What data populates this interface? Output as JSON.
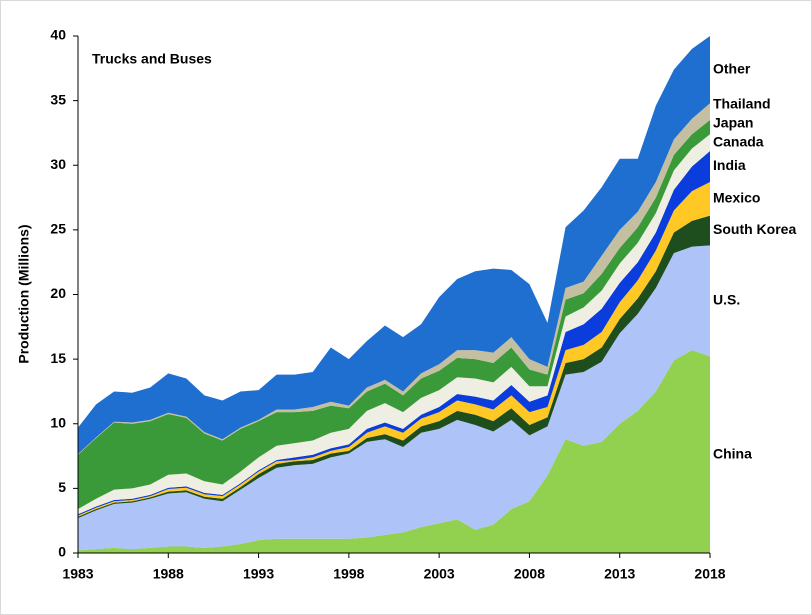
{
  "chart_data": {
    "type": "stacked_area",
    "annotation": "Trucks and Buses",
    "ylabel": "Production (Millions)",
    "x": [
      1983,
      1984,
      1985,
      1986,
      1987,
      1988,
      1989,
      1990,
      1991,
      1992,
      1993,
      1994,
      1995,
      1996,
      1997,
      1998,
      1999,
      2000,
      2001,
      2002,
      2003,
      2004,
      2005,
      2006,
      2007,
      2008,
      2009,
      2010,
      2011,
      2012,
      2013,
      2014,
      2015,
      2016,
      2017,
      2018
    ],
    "xlim": [
      1983,
      2018
    ],
    "xticks": [
      1983,
      1988,
      1993,
      1998,
      2003,
      2008,
      2013,
      2018
    ],
    "ylim": [
      0,
      40
    ],
    "yticks": [
      0,
      5,
      10,
      15,
      20,
      25,
      30,
      35,
      40
    ],
    "series": [
      {
        "name": "China",
        "color": "#92d050",
        "values": [
          0.2,
          0.3,
          0.4,
          0.3,
          0.4,
          0.5,
          0.5,
          0.4,
          0.5,
          0.7,
          1.0,
          1.1,
          1.1,
          1.1,
          1.1,
          1.1,
          1.2,
          1.4,
          1.6,
          2.0,
          2.3,
          2.6,
          1.8,
          2.2,
          3.4,
          4.0,
          6.0,
          8.8,
          8.3,
          8.6,
          10.0,
          11.0,
          12.5,
          14.9,
          15.7,
          15.2
        ]
      },
      {
        "name": "U.S.",
        "color": "#aec3f7",
        "values": [
          2.5,
          3.0,
          3.4,
          3.6,
          3.8,
          4.1,
          4.2,
          3.8,
          3.5,
          4.2,
          4.8,
          5.5,
          5.7,
          5.8,
          6.3,
          6.6,
          7.4,
          7.4,
          6.6,
          7.3,
          7.3,
          7.7,
          8.1,
          7.2,
          6.9,
          5.1,
          3.8,
          5.0,
          5.7,
          6.2,
          7.0,
          7.5,
          8.0,
          8.3,
          8.0,
          8.6
        ]
      },
      {
        "name": "South Korea",
        "color": "#1e4d1e",
        "values": [
          0.1,
          0.1,
          0.1,
          0.1,
          0.1,
          0.15,
          0.15,
          0.15,
          0.2,
          0.2,
          0.3,
          0.3,
          0.3,
          0.3,
          0.3,
          0.2,
          0.3,
          0.4,
          0.5,
          0.5,
          0.6,
          0.7,
          0.8,
          0.8,
          0.9,
          0.8,
          0.7,
          0.9,
          1.0,
          1.1,
          1.1,
          1.2,
          1.3,
          1.6,
          2.0,
          2.3
        ]
      },
      {
        "name": "Mexico",
        "color": "#ffc824",
        "values": [
          0.1,
          0.1,
          0.1,
          0.1,
          0.1,
          0.2,
          0.2,
          0.2,
          0.2,
          0.2,
          0.2,
          0.2,
          0.1,
          0.2,
          0.2,
          0.3,
          0.4,
          0.6,
          0.6,
          0.6,
          0.7,
          0.8,
          0.8,
          0.9,
          1.0,
          1.0,
          0.8,
          1.0,
          1.1,
          1.2,
          1.3,
          1.4,
          1.6,
          1.7,
          2.3,
          2.6
        ]
      },
      {
        "name": "India",
        "color": "#0a3ddb",
        "values": [
          0.1,
          0.1,
          0.1,
          0.1,
          0.1,
          0.1,
          0.1,
          0.1,
          0.1,
          0.1,
          0.1,
          0.1,
          0.2,
          0.2,
          0.2,
          0.2,
          0.3,
          0.3,
          0.3,
          0.3,
          0.4,
          0.5,
          0.6,
          0.7,
          0.8,
          0.8,
          0.9,
          1.4,
          1.6,
          1.8,
          1.5,
          1.4,
          1.4,
          1.6,
          1.9,
          2.4
        ]
      },
      {
        "name": "Canada",
        "color": "#eeeee2",
        "values": [
          0.4,
          0.6,
          0.8,
          0.8,
          0.8,
          1.0,
          1.0,
          0.9,
          0.8,
          0.9,
          1.0,
          1.1,
          1.1,
          1.1,
          1.2,
          1.2,
          1.4,
          1.5,
          1.3,
          1.3,
          1.3,
          1.3,
          1.4,
          1.4,
          1.4,
          1.2,
          0.7,
          1.2,
          1.3,
          1.4,
          1.5,
          1.5,
          1.5,
          1.5,
          1.4,
          1.3
        ]
      },
      {
        "name": "Japan",
        "color": "#3a9a3a",
        "values": [
          4.2,
          4.7,
          5.2,
          5.0,
          4.9,
          4.7,
          4.3,
          3.7,
          3.4,
          3.3,
          2.8,
          2.6,
          2.4,
          2.3,
          2.1,
          1.6,
          1.5,
          1.5,
          1.3,
          1.5,
          1.5,
          1.5,
          1.5,
          1.5,
          1.5,
          1.3,
          0.9,
          1.3,
          1.1,
          1.3,
          1.2,
          1.2,
          1.2,
          1.2,
          1.1,
          1.1
        ]
      },
      {
        "name": "Thailand",
        "color": "#c4bfa0",
        "values": [
          0.05,
          0.05,
          0.05,
          0.1,
          0.1,
          0.1,
          0.1,
          0.1,
          0.1,
          0.1,
          0.1,
          0.2,
          0.2,
          0.3,
          0.3,
          0.2,
          0.3,
          0.3,
          0.3,
          0.4,
          0.5,
          0.6,
          0.7,
          0.8,
          0.8,
          0.8,
          0.6,
          0.9,
          0.9,
          1.4,
          1.4,
          1.2,
          1.2,
          1.2,
          1.2,
          1.3
        ]
      },
      {
        "name": "Other",
        "color": "#1f6fd0",
        "values": [
          2.05,
          2.55,
          2.35,
          2.3,
          2.5,
          3.05,
          2.95,
          2.85,
          3.0,
          2.8,
          2.3,
          2.7,
          2.7,
          2.7,
          4.2,
          3.6,
          3.6,
          4.2,
          4.2,
          3.8,
          5.2,
          5.5,
          6.1,
          6.5,
          5.2,
          5.8,
          3.4,
          4.7,
          5.5,
          5.3,
          5.5,
          4.1,
          5.9,
          5.4,
          5.4,
          5.2
        ]
      }
    ]
  }
}
